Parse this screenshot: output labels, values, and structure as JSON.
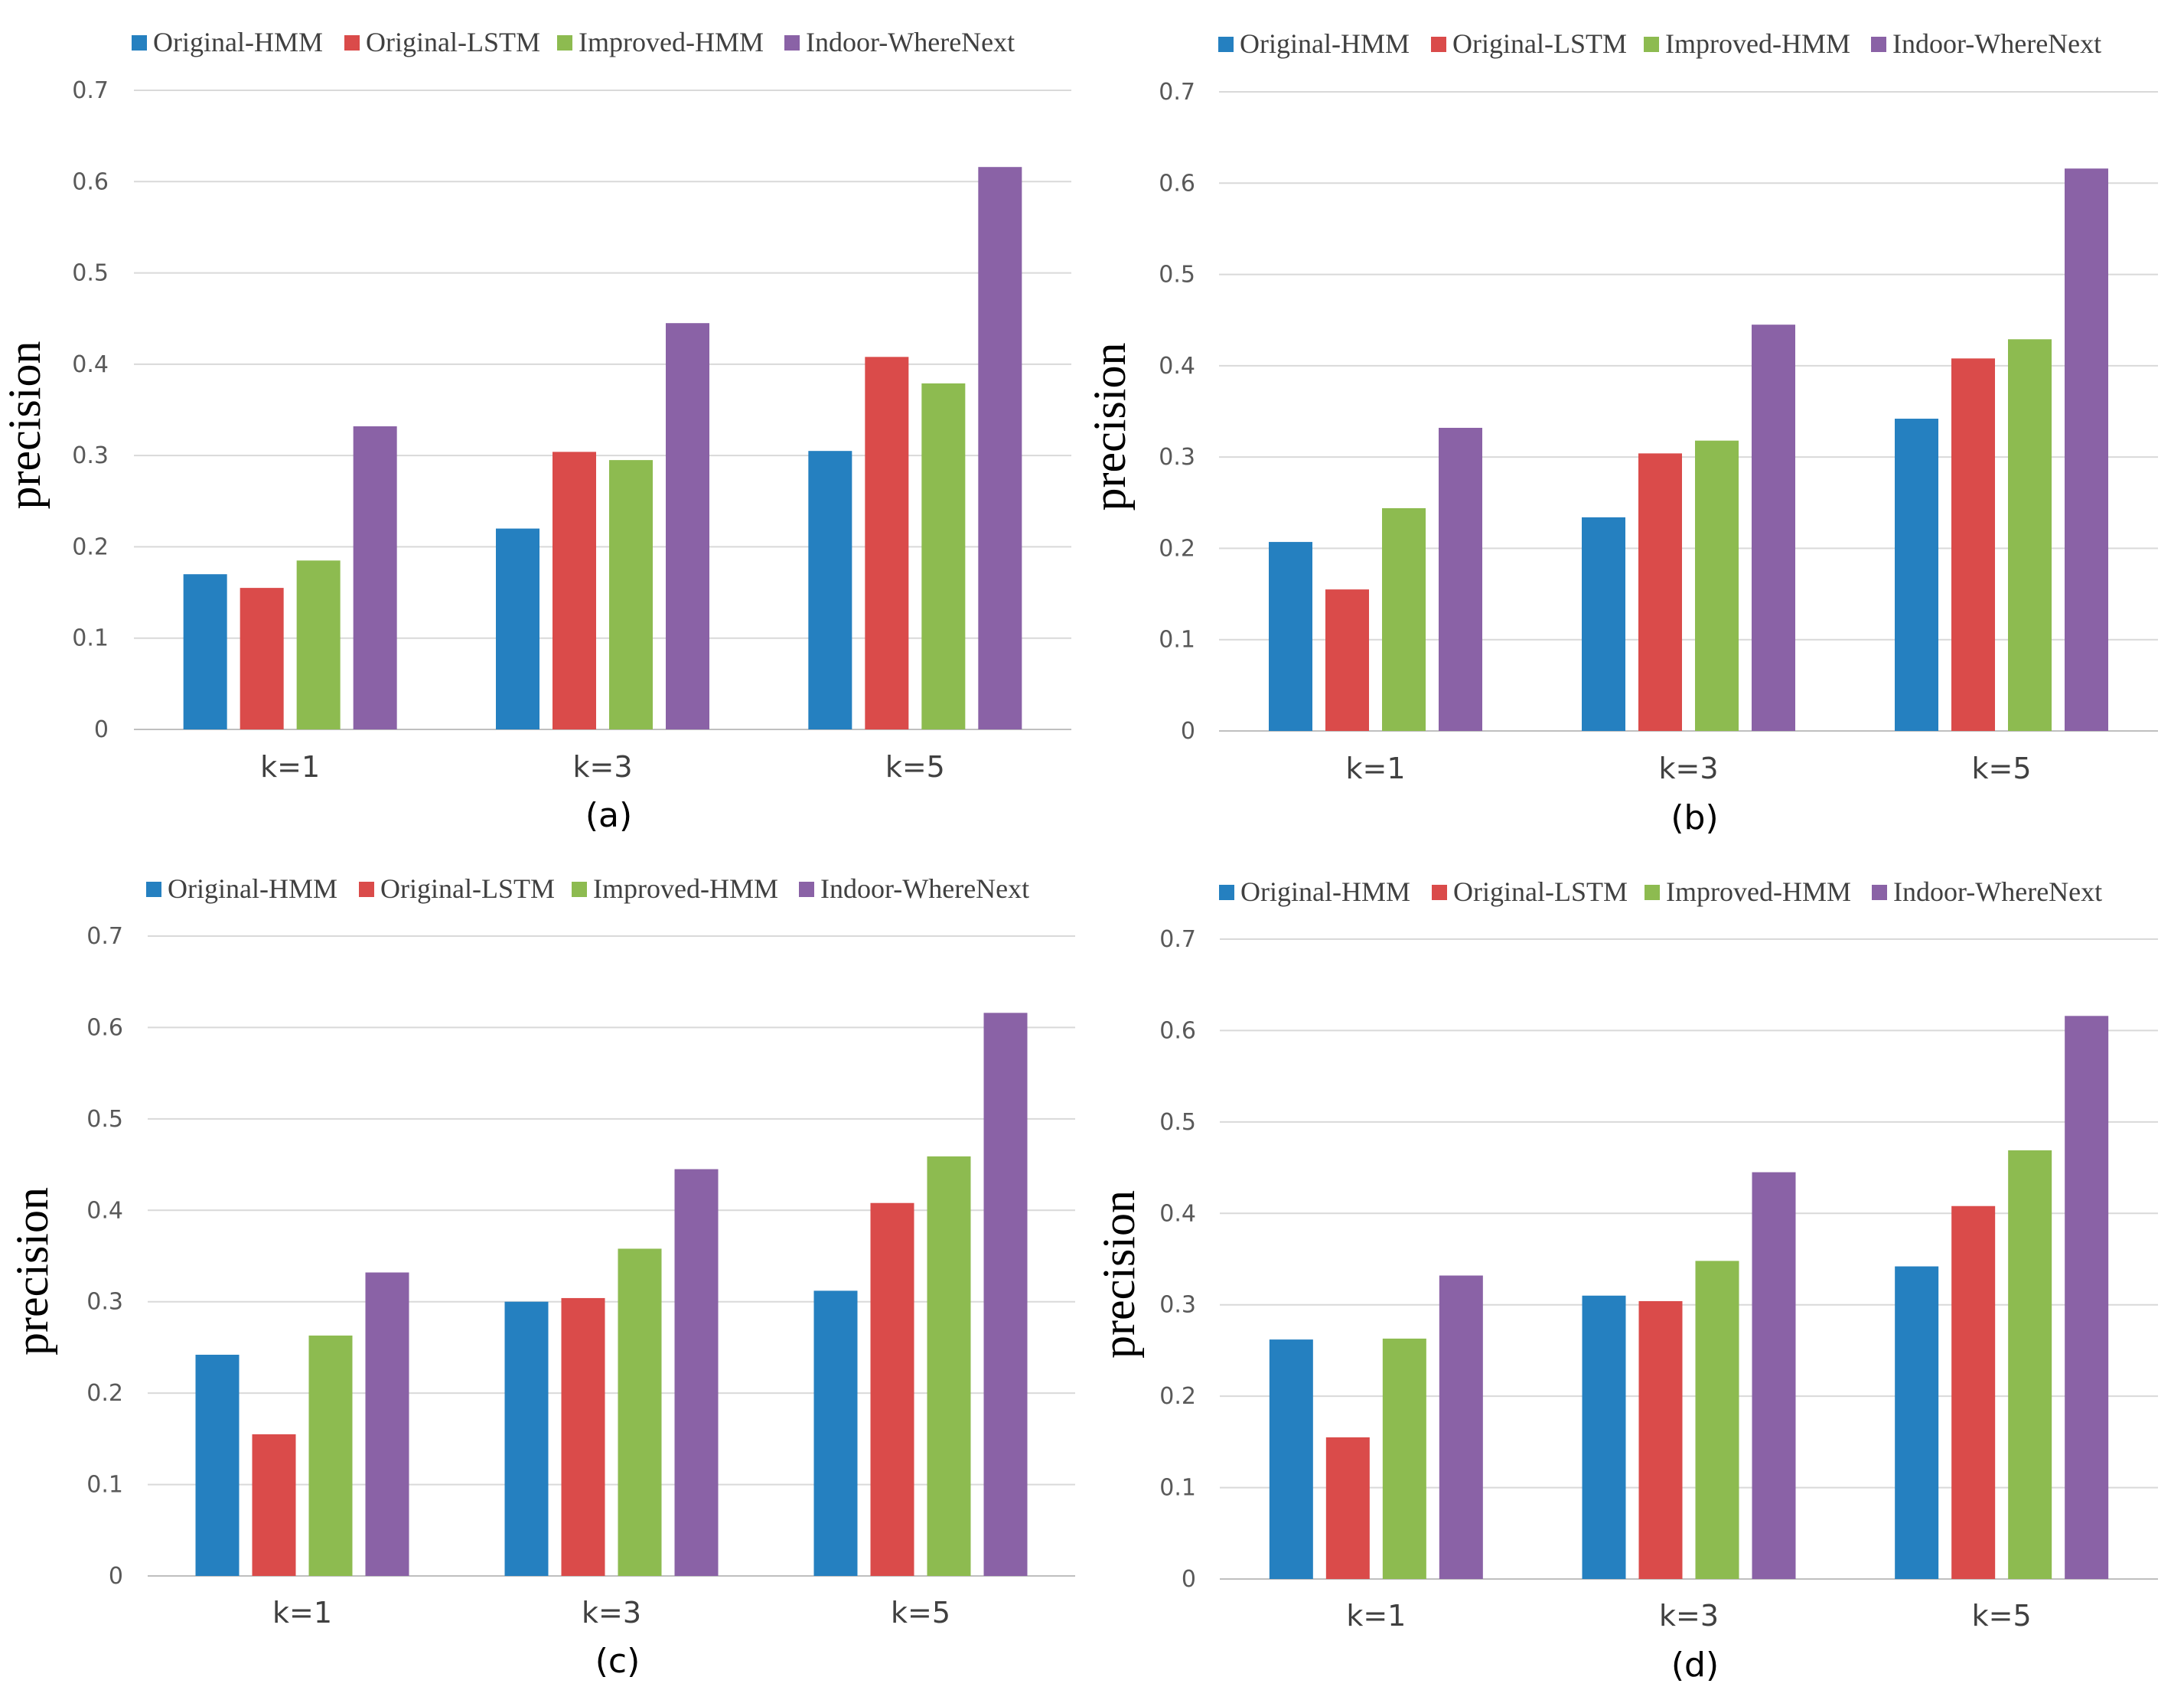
{
  "colors": {
    "Original-HMM": "#2580C0",
    "Original-LSTM": "#DA4B4A",
    "Improved-HMM": "#8DBB50",
    "Indoor-WhereNext": "#8A62A6"
  },
  "chart_data": [
    {
      "type": "bar",
      "caption": "(a)",
      "ylabel": "precision",
      "xlabel": "",
      "ylim": [
        0,
        0.7
      ],
      "yticks": [
        "0",
        "0.1",
        "0.2",
        "0.3",
        "0.4",
        "0.5",
        "0.6",
        "0.7"
      ],
      "grid": true,
      "legend": "top",
      "categories": [
        "k=1",
        "k=3",
        "k=5"
      ],
      "series": [
        {
          "name": "Original-HMM",
          "values": [
            0.17,
            0.22,
            0.305
          ]
        },
        {
          "name": "Original-LSTM",
          "values": [
            0.155,
            0.304,
            0.408
          ]
        },
        {
          "name": "Improved-HMM",
          "values": [
            0.185,
            0.295,
            0.379
          ]
        },
        {
          "name": "Indoor-WhereNext",
          "values": [
            0.332,
            0.445,
            0.616
          ]
        }
      ]
    },
    {
      "type": "bar",
      "caption": "(b)",
      "ylabel": "precision",
      "xlabel": "",
      "ylim": [
        0,
        0.7
      ],
      "yticks": [
        "0",
        "0.1",
        "0.2",
        "0.3",
        "0.4",
        "0.5",
        "0.6",
        "0.7"
      ],
      "grid": true,
      "legend": "top",
      "categories": [
        "k=1",
        "k=3",
        "k=5"
      ],
      "series": [
        {
          "name": "Original-HMM",
          "values": [
            0.207,
            0.234,
            0.342
          ]
        },
        {
          "name": "Original-LSTM",
          "values": [
            0.155,
            0.304,
            0.408
          ]
        },
        {
          "name": "Improved-HMM",
          "values": [
            0.244,
            0.318,
            0.429
          ]
        },
        {
          "name": "Indoor-WhereNext",
          "values": [
            0.332,
            0.445,
            0.616
          ]
        }
      ]
    },
    {
      "type": "bar",
      "caption": "(c)",
      "ylabel": "precision",
      "xlabel": "",
      "ylim": [
        0,
        0.7
      ],
      "yticks": [
        "0",
        "0.1",
        "0.2",
        "0.3",
        "0.4",
        "0.5",
        "0.6",
        "0.7"
      ],
      "grid": true,
      "legend": "top",
      "categories": [
        "k=1",
        "k=3",
        "k=5"
      ],
      "series": [
        {
          "name": "Original-HMM",
          "values": [
            0.242,
            0.3,
            0.312
          ]
        },
        {
          "name": "Original-LSTM",
          "values": [
            0.155,
            0.304,
            0.408
          ]
        },
        {
          "name": "Improved-HMM",
          "values": [
            0.263,
            0.358,
            0.459
          ]
        },
        {
          "name": "Indoor-WhereNext",
          "values": [
            0.332,
            0.445,
            0.616
          ]
        }
      ]
    },
    {
      "type": "bar",
      "caption": "(d)",
      "ylabel": "precision",
      "xlabel": "",
      "ylim": [
        0,
        0.7
      ],
      "yticks": [
        "0",
        "0.1",
        "0.2",
        "0.3",
        "0.4",
        "0.5",
        "0.6",
        "0.7"
      ],
      "grid": true,
      "legend": "top",
      "categories": [
        "k=1",
        "k=3",
        "k=5"
      ],
      "series": [
        {
          "name": "Original-HMM",
          "values": [
            0.262,
            0.31,
            0.342
          ]
        },
        {
          "name": "Original-LSTM",
          "values": [
            0.155,
            0.304,
            0.408
          ]
        },
        {
          "name": "Improved-HMM",
          "values": [
            0.263,
            0.348,
            0.469
          ]
        },
        {
          "name": "Indoor-WhereNext",
          "values": [
            0.332,
            0.445,
            0.616
          ]
        }
      ]
    }
  ]
}
